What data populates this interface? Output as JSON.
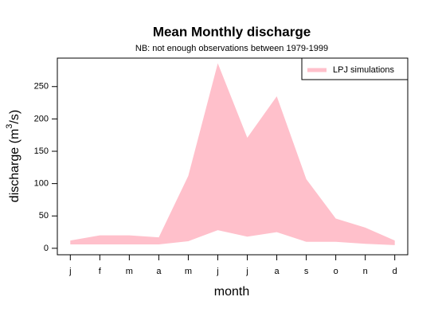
{
  "chart_data": {
    "type": "band",
    "title": "Mean Monthly discharge",
    "subtitle": "NB: not enough observations between 1979-1999",
    "x_label": "month",
    "y_label": [
      "discharge (m",
      "3",
      "/s)"
    ],
    "categories": [
      "j",
      "f",
      "m",
      "a",
      "m",
      "j",
      "j",
      "a",
      "s",
      "o",
      "n",
      "d"
    ],
    "series": [
      {
        "name": "LPJ simulations",
        "color": "#ffc0cb",
        "high": [
          12,
          20,
          20,
          17,
          112,
          286,
          171,
          235,
          107,
          46,
          32,
          12
        ],
        "low": [
          6,
          6,
          6,
          6,
          11,
          28,
          18,
          25,
          10,
          10,
          7,
          5
        ]
      }
    ],
    "ylim": [
      -10,
      294
    ],
    "yticks": [
      0,
      50,
      100,
      150,
      200,
      250
    ],
    "legend": "top-right"
  }
}
